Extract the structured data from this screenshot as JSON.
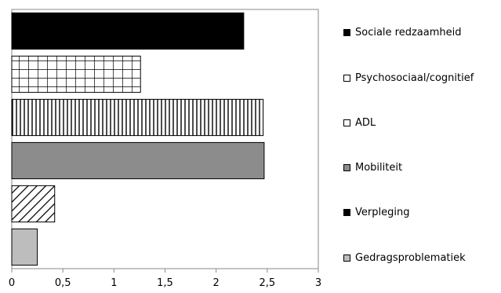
{
  "chart_data": {
    "type": "bar",
    "orientation": "horizontal",
    "categories": [
      "Sociale redzaamheid",
      "Psychosociaal/cognitief",
      "ADL",
      "Mobiliteit",
      "Verpleging",
      "Gedragsproblematiek"
    ],
    "values": [
      2.27,
      1.26,
      2.46,
      2.47,
      0.42,
      0.25
    ],
    "colors": [
      "#000000",
      "#ffffff",
      "#ffffff",
      "#8c8c8c",
      "#ffffff",
      "#bdbdbd"
    ],
    "patterns": [
      "solid",
      "grid",
      "vertical-lines",
      "solid",
      "diagonal-hatch",
      "solid"
    ],
    "xlim": [
      0,
      3
    ],
    "xticks": [
      "0",
      "0,5",
      "1",
      "1,5",
      "2",
      "2,5",
      "3"
    ],
    "legend": {
      "position": "right",
      "entries": [
        "Sociale redzaamheid",
        "Psychosociaal/cognitief",
        "ADL",
        "Mobiliteit",
        "Verpleging",
        "Gedragsproblematiek"
      ],
      "swatch_colors": [
        "#000000",
        "#ffffff",
        "#ffffff",
        "#8c8c8c",
        "#000000",
        "#bdbdbd"
      ]
    },
    "grid": false
  }
}
